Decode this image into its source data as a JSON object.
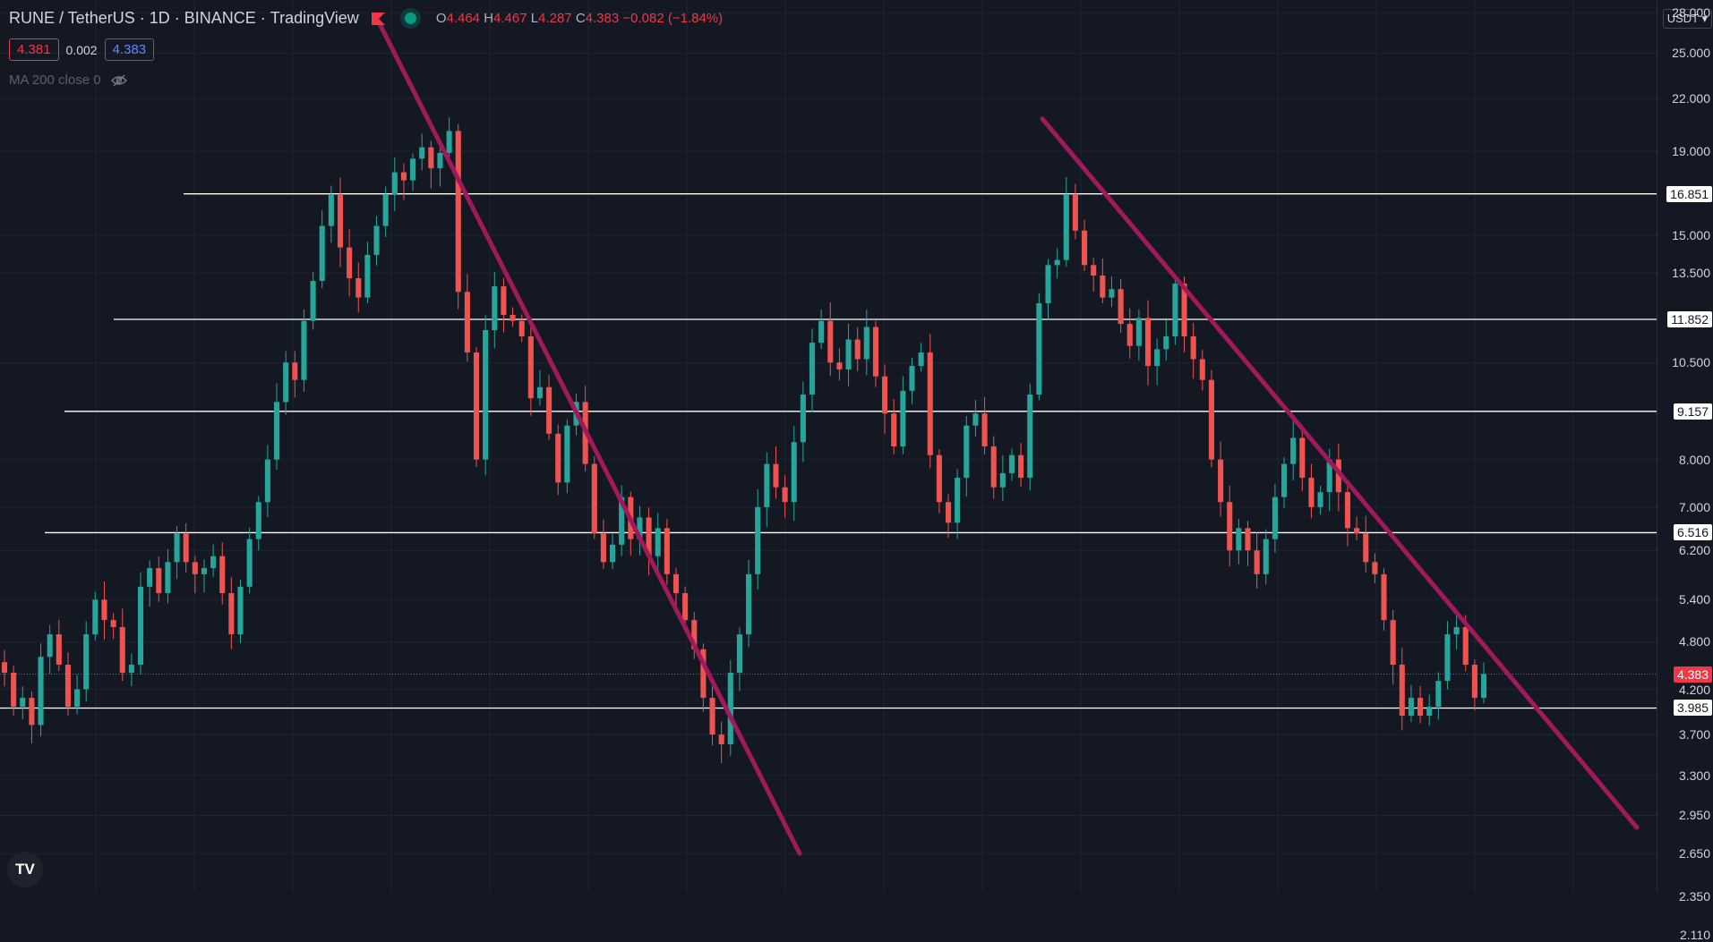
{
  "header": {
    "symbol": "RUNE / TetherUS",
    "interval": "1D",
    "exchange": "BINANCE",
    "source": "TradingView",
    "ohlc": {
      "o_label": "O",
      "o": "4.464",
      "h_label": "H",
      "h": "4.467",
      "l_label": "L",
      "l": "4.287",
      "c_label": "C",
      "c": "4.383",
      "change": "−0.082 (−1.84%)"
    },
    "bid": "4.381",
    "spread": "0.002",
    "ask": "4.383",
    "indicator": "MA 200 close 0"
  },
  "currency": "USDT",
  "colors": {
    "background": "#141823",
    "up": "#26a69a",
    "down": "#ef5350",
    "trendline": "#a0195a",
    "level": "#ffffff",
    "last_price": "#f23645"
  },
  "chart_data": {
    "type": "candlestick",
    "y_scale": "log",
    "ylim": [
      2.0,
      30.0
    ],
    "y_ticks": [
      "28.000",
      "25.000",
      "22.000",
      "19.000",
      "15.000",
      "13.500",
      "10.500",
      "8.000",
      "7.000",
      "6.200",
      "5.400",
      "4.800",
      "4.200",
      "3.700",
      "3.300",
      "2.950",
      "2.650",
      "2.350",
      "2.110"
    ],
    "grid": true,
    "horizontal_levels": [
      {
        "label": "16.851",
        "value": 16.851
      },
      {
        "label": "11.852",
        "value": 11.852
      },
      {
        "label": "9.157",
        "value": 9.157
      },
      {
        "label": "6.516",
        "value": 6.516
      },
      {
        "label": "3.985",
        "value": 3.985
      }
    ],
    "last_price": {
      "label": "4.383",
      "value": 4.383
    },
    "trendlines": [
      {
        "from": [
          0,
          27.0
        ],
        "to": [
          0,
          2.65
        ]
      },
      {
        "from": [
          0,
          20.8
        ],
        "to": [
          0,
          2.85
        ]
      }
    ],
    "closes": [
      4.4,
      4.0,
      4.1,
      3.8,
      4.6,
      4.9,
      4.5,
      4.0,
      4.2,
      4.9,
      5.4,
      5.1,
      5.0,
      4.4,
      4.5,
      5.6,
      5.9,
      5.5,
      6.0,
      6.5,
      6.0,
      5.8,
      5.9,
      6.1,
      5.5,
      4.9,
      5.6,
      6.4,
      7.1,
      8.0,
      9.4,
      10.5,
      10.0,
      11.8,
      13.2,
      15.4,
      16.8,
      14.5,
      13.3,
      12.6,
      14.2,
      15.4,
      16.8,
      17.9,
      17.5,
      18.6,
      19.2,
      18.1,
      18.9,
      20.1,
      12.8,
      10.8,
      8.0,
      11.5,
      13.0,
      12.0,
      11.8,
      11.3,
      9.5,
      9.8,
      8.6,
      7.5,
      8.8,
      9.4,
      7.9,
      6.5,
      6.0,
      6.3,
      7.2,
      6.4,
      6.8,
      6.1,
      6.6,
      5.8,
      5.5,
      5.1,
      4.7,
      4.1,
      3.7,
      3.6,
      4.4,
      4.9,
      5.8,
      7.0,
      7.9,
      7.4,
      7.1,
      8.4,
      9.6,
      11.1,
      11.8,
      10.5,
      10.3,
      11.2,
      10.6,
      11.6,
      10.1,
      9.1,
      8.3,
      9.7,
      10.4,
      10.8,
      8.1,
      7.1,
      6.7,
      7.6,
      8.8,
      9.1,
      8.3,
      7.4,
      7.7,
      8.1,
      7.6,
      9.6,
      12.4,
      13.8,
      14.0,
      16.8,
      15.2,
      13.8,
      13.4,
      12.6,
      12.9,
      11.7,
      11.0,
      11.9,
      10.4,
      10.9,
      11.3,
      13.1,
      11.3,
      10.6,
      10.0,
      8.0,
      7.1,
      6.2,
      6.6,
      6.2,
      5.8,
      6.4,
      7.2,
      7.9,
      8.5,
      7.6,
      7.0,
      7.3,
      8.0,
      7.3,
      6.6,
      6.5,
      6.0,
      5.8,
      5.1,
      4.5,
      3.9,
      4.1,
      3.9,
      4.0,
      4.3,
      4.9,
      5.0,
      4.5,
      4.1,
      4.383
    ],
    "ohlc_last": {
      "open": 4.464,
      "high": 4.467,
      "low": 4.287,
      "close": 4.383
    }
  }
}
